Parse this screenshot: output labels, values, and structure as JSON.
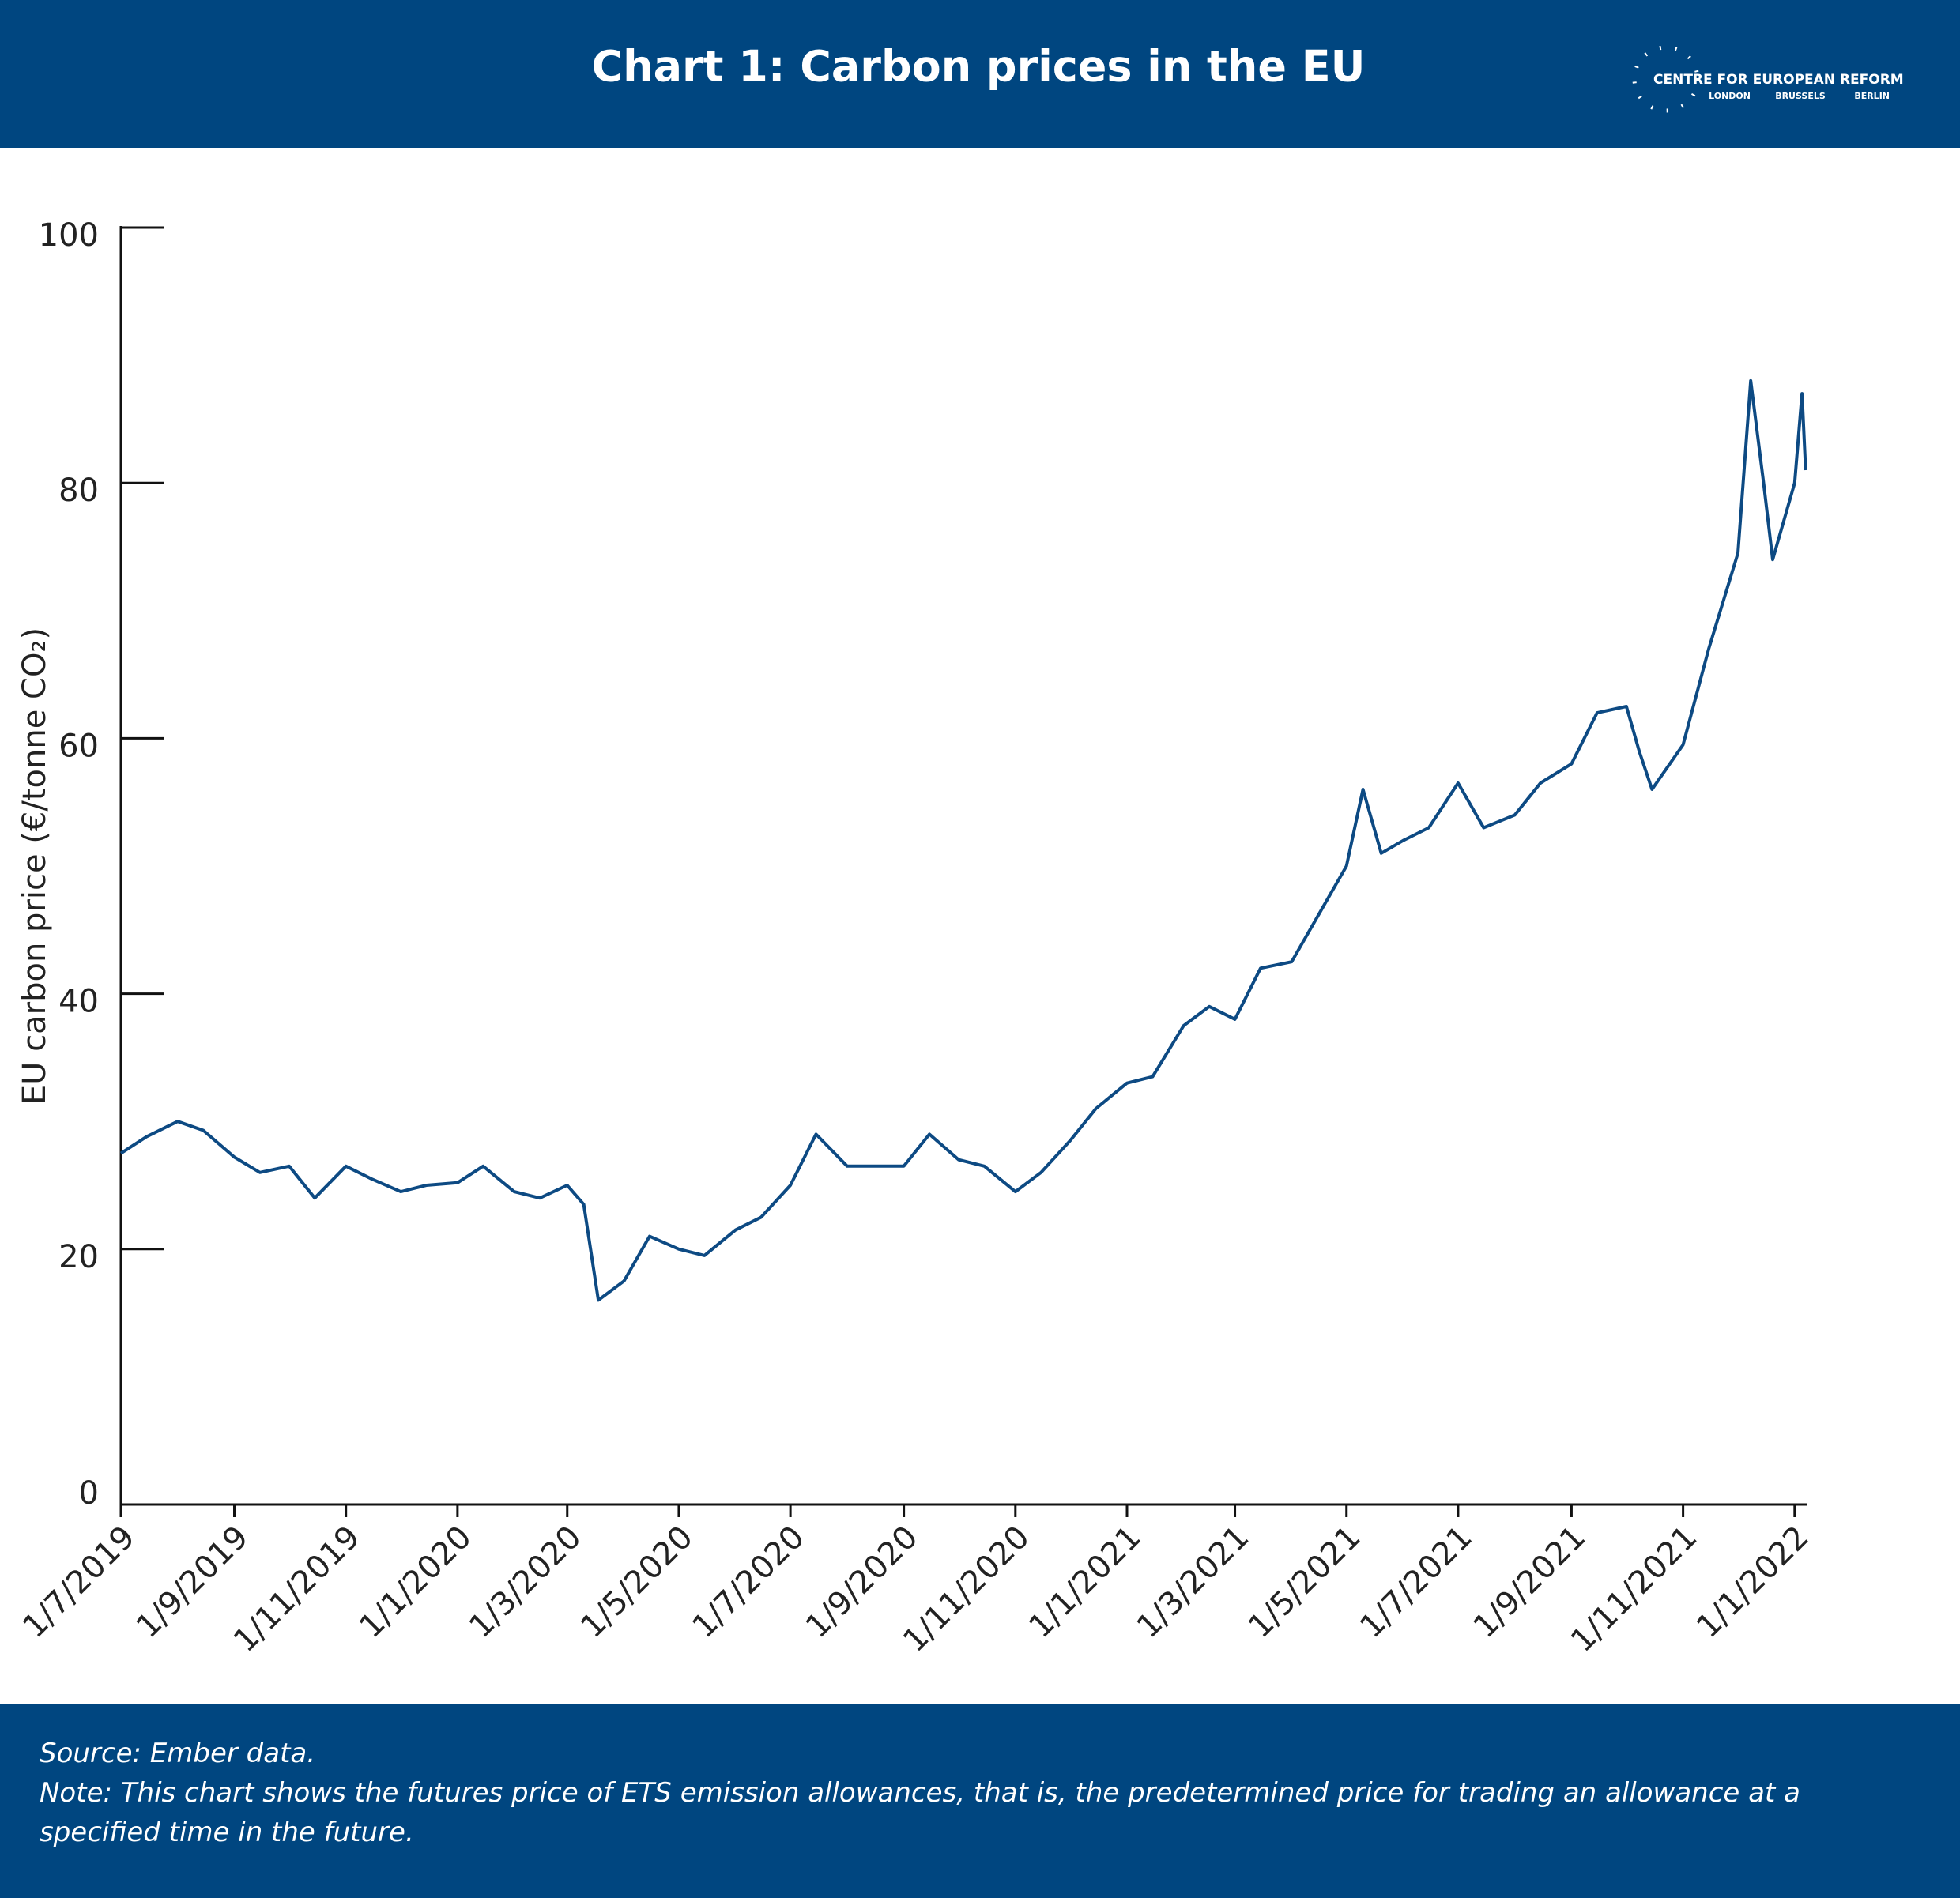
{
  "header": {
    "logo": {
      "name": "CENTRE FOR EUROPEAN REFORM",
      "cities": [
        "LONDON",
        "BRUSSELS",
        "BERLIN"
      ]
    }
  },
  "chart_data": {
    "type": "line",
    "title": "Chart 1: Carbon prices in the EU",
    "y_label": "EU carbon price (€/tonne CO₂)",
    "x": [
      "2019-07-01",
      "2019-07-15",
      "2019-08-01",
      "2019-08-15",
      "2019-09-01",
      "2019-09-15",
      "2019-10-01",
      "2019-10-15",
      "2019-11-01",
      "2019-11-15",
      "2019-12-01",
      "2019-12-15",
      "2020-01-01",
      "2020-01-15",
      "2020-02-01",
      "2020-02-15",
      "2020-03-01",
      "2020-03-10",
      "2020-03-18",
      "2020-04-01",
      "2020-04-15",
      "2020-05-01",
      "2020-05-15",
      "2020-06-01",
      "2020-06-15",
      "2020-07-01",
      "2020-07-15",
      "2020-08-01",
      "2020-08-15",
      "2020-09-01",
      "2020-09-15",
      "2020-10-01",
      "2020-10-15",
      "2020-11-01",
      "2020-11-15",
      "2020-12-01",
      "2020-12-15",
      "2021-01-01",
      "2021-01-15",
      "2021-02-01",
      "2021-02-15",
      "2021-03-01",
      "2021-03-15",
      "2021-04-01",
      "2021-04-15",
      "2021-05-01",
      "2021-05-10",
      "2021-05-20",
      "2021-06-01",
      "2021-06-15",
      "2021-07-01",
      "2021-07-15",
      "2021-08-01",
      "2021-08-15",
      "2021-09-01",
      "2021-09-15",
      "2021-10-01",
      "2021-10-08",
      "2021-10-15",
      "2021-11-01",
      "2021-11-15",
      "2021-12-01",
      "2021-12-08",
      "2021-12-15",
      "2021-12-20",
      "2022-01-01",
      "2022-01-05",
      "2022-01-07"
    ],
    "series": [
      {
        "name": "EU carbon price",
        "color": "#0d4a83",
        "values": [
          27.5,
          28.8,
          30.0,
          29.3,
          27.2,
          26.0,
          26.5,
          24.0,
          26.5,
          25.5,
          24.5,
          25.0,
          25.2,
          26.5,
          24.5,
          24.0,
          25.0,
          23.5,
          16.0,
          17.5,
          21.0,
          20.0,
          19.5,
          21.5,
          22.5,
          25.0,
          29.0,
          26.5,
          26.5,
          26.5,
          29.0,
          27.0,
          26.5,
          24.5,
          26.0,
          28.5,
          31.0,
          33.0,
          33.5,
          37.5,
          39.0,
          38.0,
          42.0,
          42.5,
          46.0,
          50.0,
          56.0,
          51.0,
          52.0,
          53.0,
          56.5,
          53.0,
          54.0,
          56.5,
          58.0,
          62.0,
          62.5,
          59.0,
          56.0,
          59.5,
          67.0,
          74.5,
          88.0,
          80.0,
          74.0,
          80.0,
          87.0,
          81.0
        ]
      }
    ],
    "xlim": [
      "2019-07-01",
      "2022-01-08"
    ],
    "xticks": [
      {
        "value": "2019-07-01",
        "label": "1/7/2019"
      },
      {
        "value": "2019-09-01",
        "label": "1/9/2019"
      },
      {
        "value": "2019-11-01",
        "label": "1/11/2019"
      },
      {
        "value": "2020-01-01",
        "label": "1/1/2020"
      },
      {
        "value": "2020-03-01",
        "label": "1/3/2020"
      },
      {
        "value": "2020-05-01",
        "label": "1/5/2020"
      },
      {
        "value": "2020-07-01",
        "label": "1/7/2020"
      },
      {
        "value": "2020-09-01",
        "label": "1/9/2020"
      },
      {
        "value": "2020-11-01",
        "label": "1/11/2020"
      },
      {
        "value": "2021-01-01",
        "label": "1/1/2021"
      },
      {
        "value": "2021-03-01",
        "label": "1/3/2021"
      },
      {
        "value": "2021-05-01",
        "label": "1/5/2021"
      },
      {
        "value": "2021-07-01",
        "label": "1/7/2021"
      },
      {
        "value": "2021-09-01",
        "label": "1/9/2021"
      },
      {
        "value": "2021-11-01",
        "label": "1/11/2021"
      },
      {
        "value": "2022-01-01",
        "label": "1/1/2022"
      }
    ],
    "ylim": [
      0,
      100
    ],
    "yticks": [
      0,
      20,
      40,
      60,
      80,
      100
    ],
    "grid": false
  },
  "footer": {
    "source": "Source: Ember data.",
    "note": "Note: This chart shows the futures price of ETS emission allowances, that is, the predetermined price for trading an allowance at a specified time in the future."
  }
}
